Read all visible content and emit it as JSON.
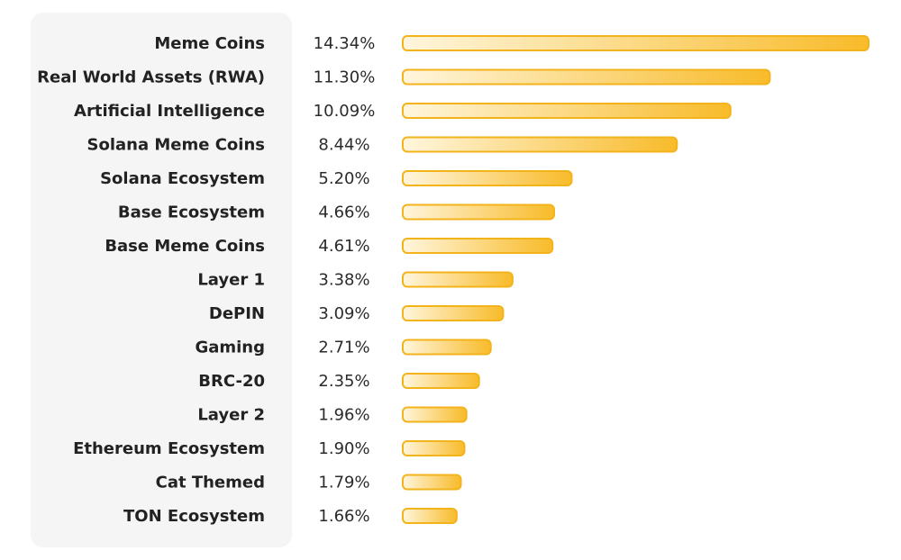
{
  "colors": {
    "bar_fill_start": "#fff6dd",
    "bar_fill_end": "#f8bb2a",
    "bar_stroke": "#f3b31b",
    "panel_background": "#f5f5f6",
    "label_text": "#222222"
  },
  "chart_data": {
    "type": "bar",
    "orientation": "horizontal",
    "title": "",
    "xlabel": "",
    "ylabel": "",
    "unit": "%",
    "grid": false,
    "legend": "none",
    "categories": [
      "Meme Coins",
      "Real World Assets (RWA)",
      "Artificial Intelligence",
      "Solana Meme Coins",
      "Solana Ecosystem",
      "Base Ecosystem",
      "Base Meme Coins",
      "Layer 1",
      "DePIN",
      "Gaming",
      "BRC-20",
      "Layer 2",
      "Ethereum Ecosystem",
      "Cat Themed",
      "TON Ecosystem"
    ],
    "values": [
      14.34,
      11.3,
      10.09,
      8.44,
      5.2,
      4.66,
      4.61,
      3.38,
      3.09,
      2.71,
      2.35,
      1.96,
      1.9,
      1.79,
      1.66
    ],
    "value_labels": [
      "14.34%",
      "11.30%",
      "10.09%",
      "8.44%",
      "5.20%",
      "4.66%",
      "4.61%",
      "3.38%",
      "3.09%",
      "2.71%",
      "2.35%",
      "1.96%",
      "1.90%",
      "1.79%",
      "1.66%"
    ],
    "xlim": [
      0,
      14.34
    ]
  }
}
